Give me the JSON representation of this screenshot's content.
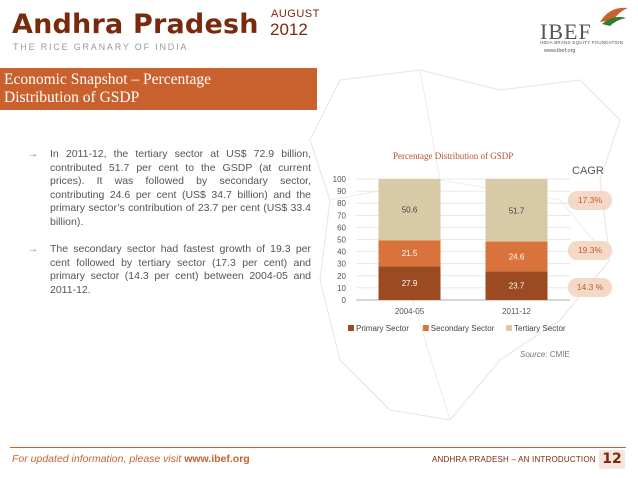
{
  "header": {
    "title": "Andhra Pradesh",
    "month": "AUGUST",
    "year": "2012",
    "subtitle": "THE RICE GRANARY OF INDIA",
    "logo_text": "IBEF",
    "logo_sub": "INDIA BRAND EQUITY FOUNDATION",
    "logo_url": "www.ibef.org",
    "brand_color": "#c8612d"
  },
  "section": {
    "title_line1": "Economic Snapshot – Percentage",
    "title_line2": "Distribution of GSDP"
  },
  "bullets": [
    {
      "text": "In 2011-12, the tertiary sector at US$ 72.9 billion, contributed 51.7 per cent to the GSDP (at current prices). It was followed by secondary sector, contributing 24.6 per cent (US$ 34.7 billion) and the primary sector’s contribution of 23.7 per cent (US$ 33.4 billion)."
    },
    {
      "text": "The secondary sector had fastest growth of 19.3 per cent followed by tertiary sector (17.3 per cent) and primary sector (14.3 per cent) between 2004-05 and 2011-12."
    }
  ],
  "chart_data": {
    "type": "bar",
    "stacked": true,
    "title": "Percentage Distribution of GSDP",
    "categories": [
      "2004-05",
      "2011-12"
    ],
    "series": [
      {
        "name": "Primary Sector",
        "values": [
          27.9,
          23.7
        ],
        "color": "#9b4a22"
      },
      {
        "name": "Secondary Sector",
        "values": [
          21.5,
          24.6
        ],
        "color": "#d9733b"
      },
      {
        "name": "Tertiary Sector",
        "values": [
          50.6,
          51.7
        ],
        "color": "#d8c9a7"
      }
    ],
    "ylim": [
      0,
      100
    ],
    "yticks": [
      0,
      10,
      20,
      30,
      40,
      50,
      60,
      70,
      80,
      90,
      100
    ],
    "grid": true,
    "legend": "bottom"
  },
  "cagr": {
    "label": "CAGR",
    "values": [
      "17.3%",
      "19.3%",
      "14.3 %"
    ]
  },
  "source": {
    "label": "Source:",
    "value": "CMIE"
  },
  "footer": {
    "left_text": "For updated information, please visit ",
    "left_link": "www.ibef.org",
    "right_text": "ANDHRA PRADESH – AN INTRODUCTION",
    "page": "12"
  }
}
